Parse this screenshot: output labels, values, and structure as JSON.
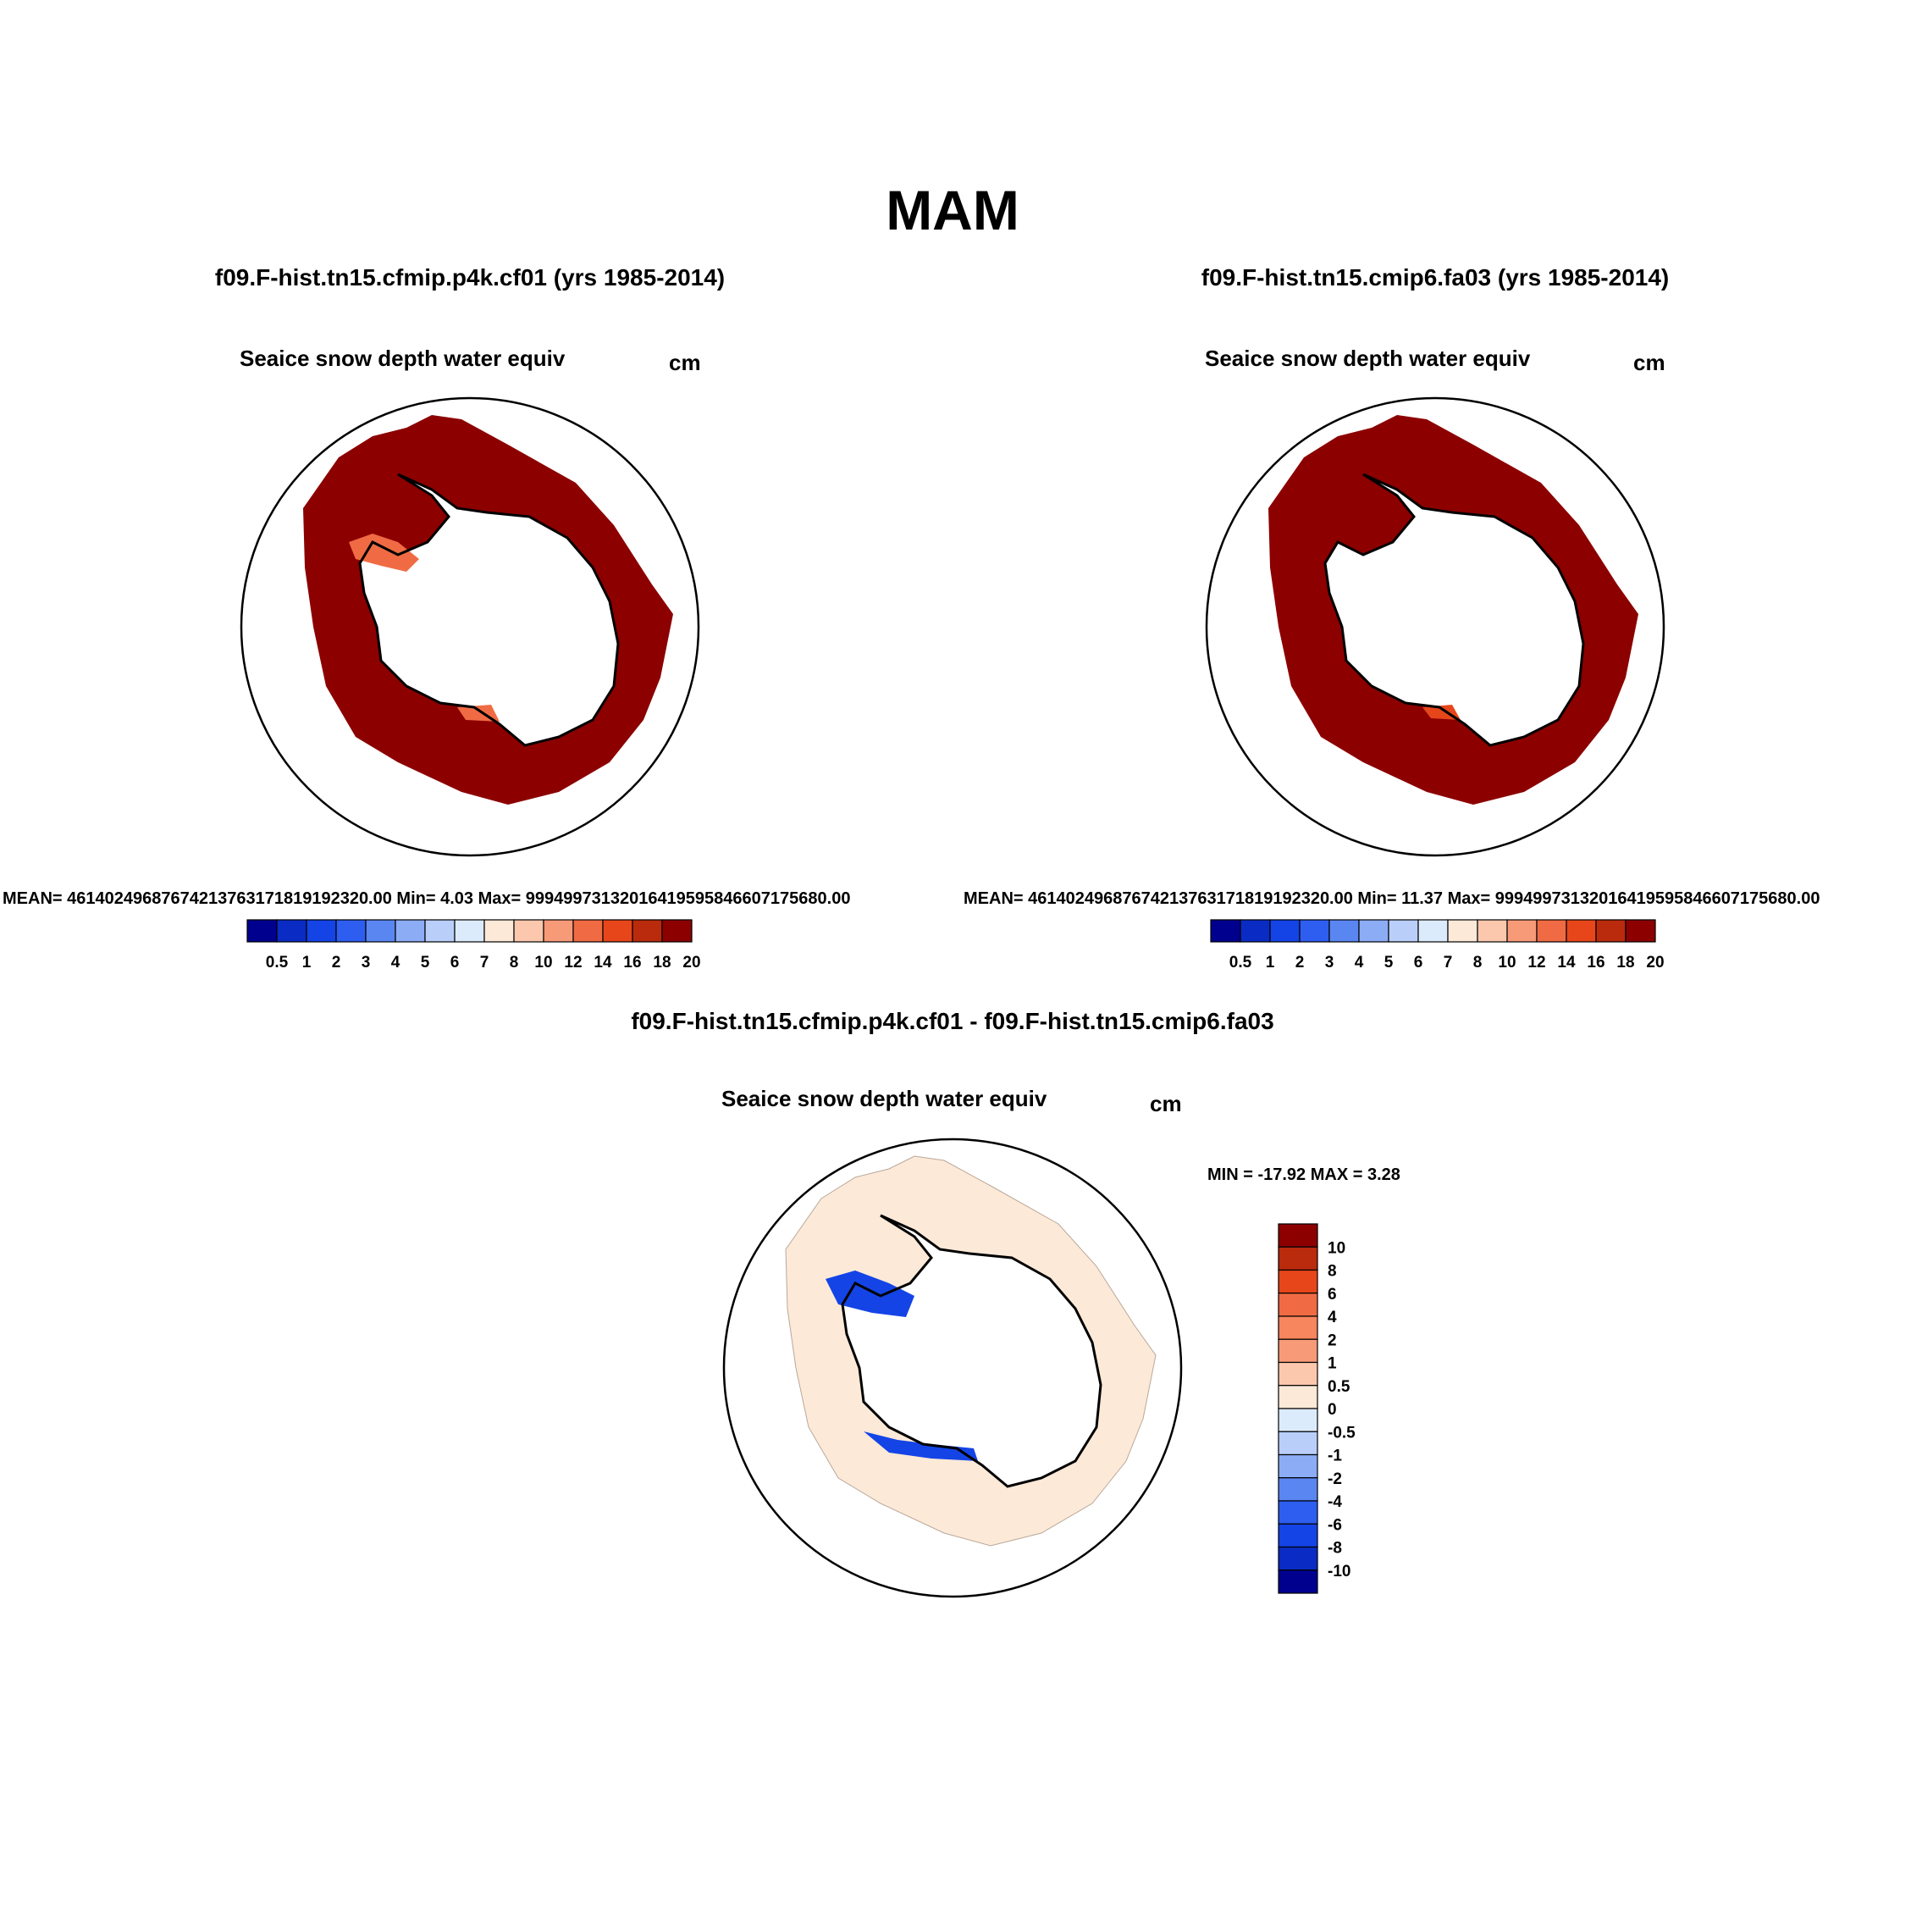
{
  "title": "MAM",
  "panels": [
    {
      "case_title": "f09.F-hist.tn15.cfmip.p4k.cf01 (yrs 1985-2014)",
      "variable": "Seaice snow depth water equiv",
      "units": "cm",
      "stats": "MEAN= 46140249687674213763171819192320.00  Min=   4.03  Max= 99949973132016419595846607175680.00"
    },
    {
      "case_title": "f09.F-hist.tn15.cmip6.fa03 (yrs 1985-2014)",
      "variable": "Seaice snow depth water equiv",
      "units": "cm",
      "stats": "MEAN= 46140249687674213763171819192320.00  Min=  11.37  Max= 99949973132016419595846607175680.00"
    }
  ],
  "diff": {
    "title": "f09.F-hist.tn15.cfmip.p4k.cf01 - f09.F-hist.tn15.cmip6.fa03",
    "variable": "Seaice snow depth water equiv",
    "units": "cm",
    "minmax": "MIN = -17.92 MAX =   3.28"
  },
  "colorbar_abs": {
    "labels": [
      "0.5",
      "1",
      "2",
      "3",
      "4",
      "5",
      "6",
      "7",
      "8",
      "10",
      "12",
      "14",
      "16",
      "18",
      "20"
    ],
    "colors": [
      "#00008f",
      "#0a2cc4",
      "#1444e6",
      "#2d5ef0",
      "#5a86f2",
      "#8cadf5",
      "#b9cff9",
      "#dcebfb",
      "#fde9d8",
      "#fbc8ae",
      "#f79a78",
      "#f06b44",
      "#e7461a",
      "#ba2a0d",
      "#8c0000"
    ]
  },
  "colorbar_diff": {
    "labels": [
      "10",
      "8",
      "6",
      "4",
      "2",
      "1",
      "0.5",
      "0",
      "-0.5",
      "-1",
      "-2",
      "-4",
      "-6",
      "-8",
      "-10"
    ],
    "colors": [
      "#8c0000",
      "#ba2a0d",
      "#e7461a",
      "#f06b44",
      "#f7855e",
      "#f79a78",
      "#fbc8ae",
      "#fde9d8",
      "#dcebfb",
      "#b9cff9",
      "#8cadf5",
      "#5a86f2",
      "#2d5ef0",
      "#1444e6",
      "#0a2cc4",
      "#00008f"
    ]
  },
  "map_colors": {
    "ice_abs": "#8c0000",
    "ice_diff": "#fde9d8",
    "negative_diff": "#1444e6",
    "coast": "#000000"
  }
}
